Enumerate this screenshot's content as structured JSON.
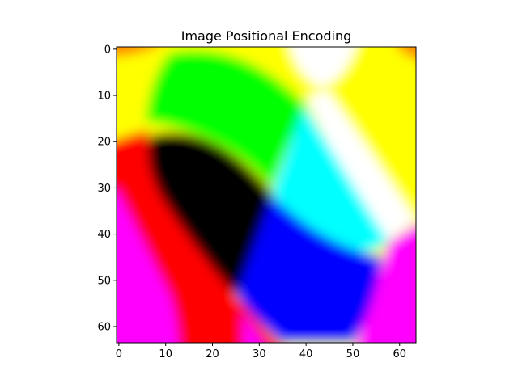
{
  "chart_data": {
    "type": "heatmap",
    "title": "Image Positional Encoding",
    "xlabel": "",
    "ylabel": "",
    "grid_size": [
      64,
      64
    ],
    "xlim": [
      -0.5,
      63.5
    ],
    "ylim": [
      63.5,
      -0.5
    ],
    "x_ticks": [
      0,
      10,
      20,
      30,
      40,
      50,
      60
    ],
    "y_ticks": [
      0,
      10,
      20,
      30,
      40,
      50,
      60
    ],
    "grid": false,
    "legend": false,
    "colors": {
      "yellow": "#ffff00",
      "green": "#00ff00",
      "red": "#ff0000",
      "black": "#000000",
      "cyan": "#00ffff",
      "white": "#ffffff",
      "blue": "#0000ff",
      "magenta": "#ff00ff",
      "orange": "#ff8c00"
    }
  }
}
